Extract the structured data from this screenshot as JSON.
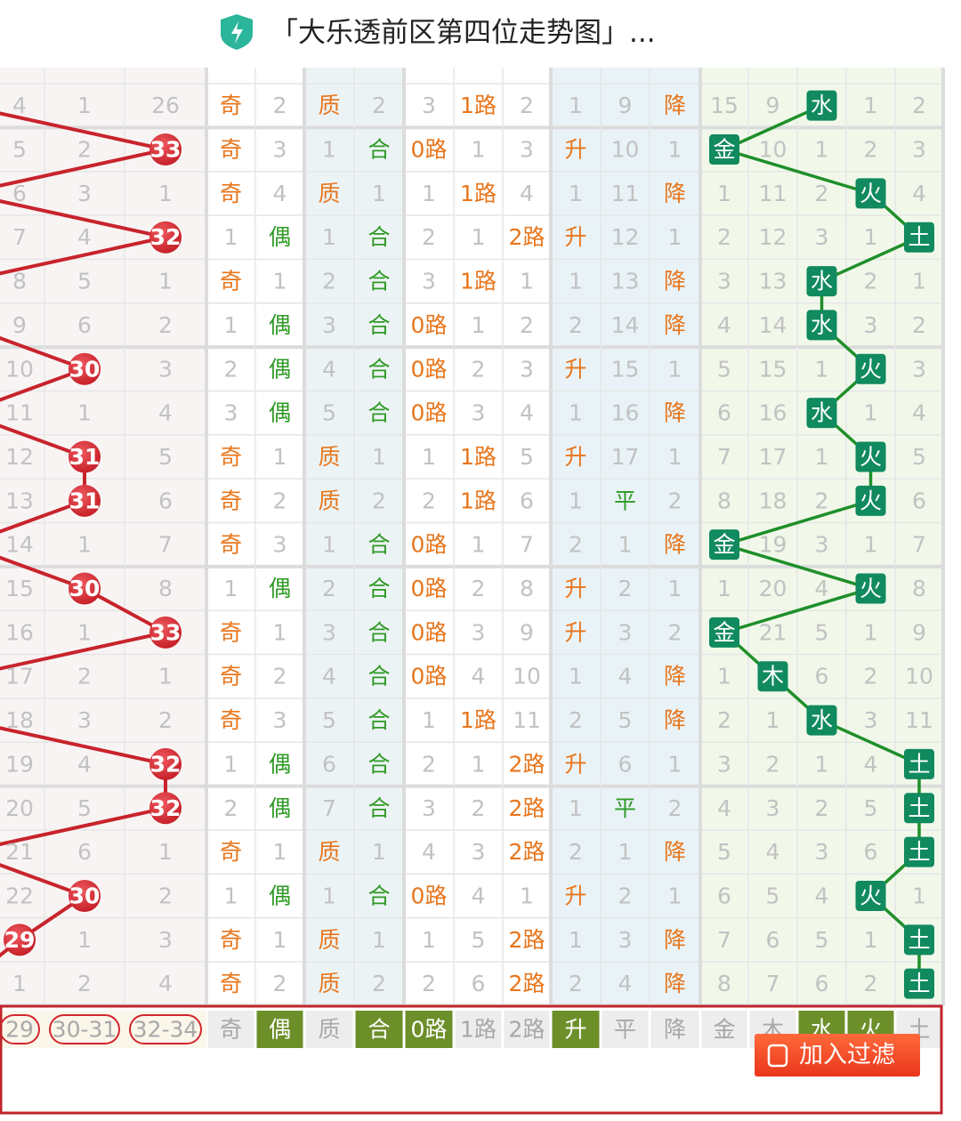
{
  "header": {
    "title": "「大乐透前区第四位走势图」..."
  },
  "table": {
    "columns": [
      {
        "label": "29",
        "selected": false,
        "hit_color": "#d3262e"
      },
      {
        "label": "30-31",
        "selected": false,
        "hit_color": "#d3262e"
      },
      {
        "label": "32-34",
        "selected": false,
        "hit_color": "#d3262e"
      },
      {
        "label": "奇",
        "selected": false,
        "hit_color": "#e8761c"
      },
      {
        "label": "偶",
        "selected": true,
        "hit_color": "#2f9a25"
      },
      {
        "label": "质",
        "selected": false,
        "hit_color": "#e8761c"
      },
      {
        "label": "合",
        "selected": true,
        "hit_color": "#2f9a25"
      },
      {
        "label": "0路",
        "selected": true,
        "hit_color": "#e8761c"
      },
      {
        "label": "1路",
        "selected": false,
        "hit_color": "#e8761c"
      },
      {
        "label": "2路",
        "selected": false,
        "hit_color": "#e8761c"
      },
      {
        "label": "升",
        "selected": true,
        "hit_color": "#e8761c"
      },
      {
        "label": "平",
        "selected": false,
        "hit_color": "#2f9a25"
      },
      {
        "label": "降",
        "selected": false,
        "hit_color": "#e8761c"
      },
      {
        "label": "金",
        "selected": false,
        "hit_color": "#108a5e"
      },
      {
        "label": "木",
        "selected": false,
        "hit_color": "#108a5e"
      },
      {
        "label": "水",
        "selected": true,
        "hit_color": "#108a5e"
      },
      {
        "label": "火",
        "selected": true,
        "hit_color": "#108a5e"
      },
      {
        "label": "土",
        "selected": false,
        "hit_color": "#108a5e"
      }
    ],
    "rows": [
      [
        "4",
        "1",
        "26",
        "奇",
        "2",
        "质",
        "2",
        "3",
        "1路",
        "2",
        "1",
        "9",
        "降",
        "15",
        "9",
        "水",
        "1",
        "2"
      ],
      [
        "5",
        "2",
        "33",
        "奇",
        "3",
        "1",
        "合",
        "0路",
        "1",
        "3",
        "升",
        "10",
        "1",
        "金",
        "10",
        "1",
        "2",
        "3"
      ],
      [
        "6",
        "3",
        "1",
        "奇",
        "4",
        "质",
        "1",
        "1",
        "1路",
        "4",
        "1",
        "11",
        "降",
        "1",
        "11",
        "2",
        "火",
        "4"
      ],
      [
        "7",
        "4",
        "32",
        "1",
        "偶",
        "1",
        "合",
        "2",
        "1",
        "2路",
        "升",
        "12",
        "1",
        "2",
        "12",
        "3",
        "1",
        "土"
      ],
      [
        "8",
        "5",
        "1",
        "奇",
        "1",
        "2",
        "合",
        "3",
        "1路",
        "1",
        "1",
        "13",
        "降",
        "3",
        "13",
        "水",
        "2",
        "1"
      ],
      [
        "9",
        "6",
        "2",
        "1",
        "偶",
        "3",
        "合",
        "0路",
        "1",
        "2",
        "2",
        "14",
        "降",
        "4",
        "14",
        "水",
        "3",
        "2"
      ],
      [
        "10",
        "30",
        "3",
        "2",
        "偶",
        "4",
        "合",
        "0路",
        "2",
        "3",
        "升",
        "15",
        "1",
        "5",
        "15",
        "1",
        "火",
        "3"
      ],
      [
        "11",
        "1",
        "4",
        "3",
        "偶",
        "5",
        "合",
        "0路",
        "3",
        "4",
        "1",
        "16",
        "降",
        "6",
        "16",
        "水",
        "1",
        "4"
      ],
      [
        "12",
        "31",
        "5",
        "奇",
        "1",
        "质",
        "1",
        "1",
        "1路",
        "5",
        "升",
        "17",
        "1",
        "7",
        "17",
        "1",
        "火",
        "5"
      ],
      [
        "13",
        "31",
        "6",
        "奇",
        "2",
        "质",
        "2",
        "2",
        "1路",
        "6",
        "1",
        "平",
        "2",
        "8",
        "18",
        "2",
        "火",
        "6"
      ],
      [
        "14",
        "1",
        "7",
        "奇",
        "3",
        "1",
        "合",
        "0路",
        "1",
        "7",
        "2",
        "1",
        "降",
        "金",
        "19",
        "3",
        "1",
        "7"
      ],
      [
        "15",
        "30",
        "8",
        "1",
        "偶",
        "2",
        "合",
        "0路",
        "2",
        "8",
        "升",
        "2",
        "1",
        "1",
        "20",
        "4",
        "火",
        "8"
      ],
      [
        "16",
        "1",
        "33",
        "奇",
        "1",
        "3",
        "合",
        "0路",
        "3",
        "9",
        "升",
        "3",
        "2",
        "金",
        "21",
        "5",
        "1",
        "9"
      ],
      [
        "17",
        "2",
        "1",
        "奇",
        "2",
        "4",
        "合",
        "0路",
        "4",
        "10",
        "1",
        "4",
        "降",
        "1",
        "木",
        "6",
        "2",
        "10"
      ],
      [
        "18",
        "3",
        "2",
        "奇",
        "3",
        "5",
        "合",
        "1",
        "1路",
        "11",
        "2",
        "5",
        "降",
        "2",
        "1",
        "水",
        "3",
        "11"
      ],
      [
        "19",
        "4",
        "32",
        "1",
        "偶",
        "6",
        "合",
        "2",
        "1",
        "2路",
        "升",
        "6",
        "1",
        "3",
        "2",
        "1",
        "4",
        "土"
      ],
      [
        "20",
        "5",
        "32",
        "2",
        "偶",
        "7",
        "合",
        "3",
        "2",
        "2路",
        "1",
        "平",
        "2",
        "4",
        "3",
        "2",
        "5",
        "土"
      ],
      [
        "21",
        "6",
        "1",
        "奇",
        "1",
        "质",
        "1",
        "4",
        "3",
        "2路",
        "2",
        "1",
        "降",
        "5",
        "4",
        "3",
        "6",
        "土"
      ],
      [
        "22",
        "30",
        "2",
        "1",
        "偶",
        "1",
        "合",
        "0路",
        "4",
        "1",
        "升",
        "2",
        "1",
        "6",
        "5",
        "4",
        "火",
        "1"
      ],
      [
        "29",
        "1",
        "3",
        "奇",
        "1",
        "质",
        "1",
        "1",
        "5",
        "2路",
        "1",
        "3",
        "降",
        "7",
        "6",
        "5",
        "1",
        "土"
      ],
      [
        "1",
        "2",
        "4",
        "奇",
        "2",
        "质",
        "2",
        "2",
        "6",
        "2路",
        "2",
        "4",
        "降",
        "8",
        "7",
        "6",
        "2",
        "土"
      ]
    ]
  },
  "button": {
    "label": "加入过滤"
  }
}
